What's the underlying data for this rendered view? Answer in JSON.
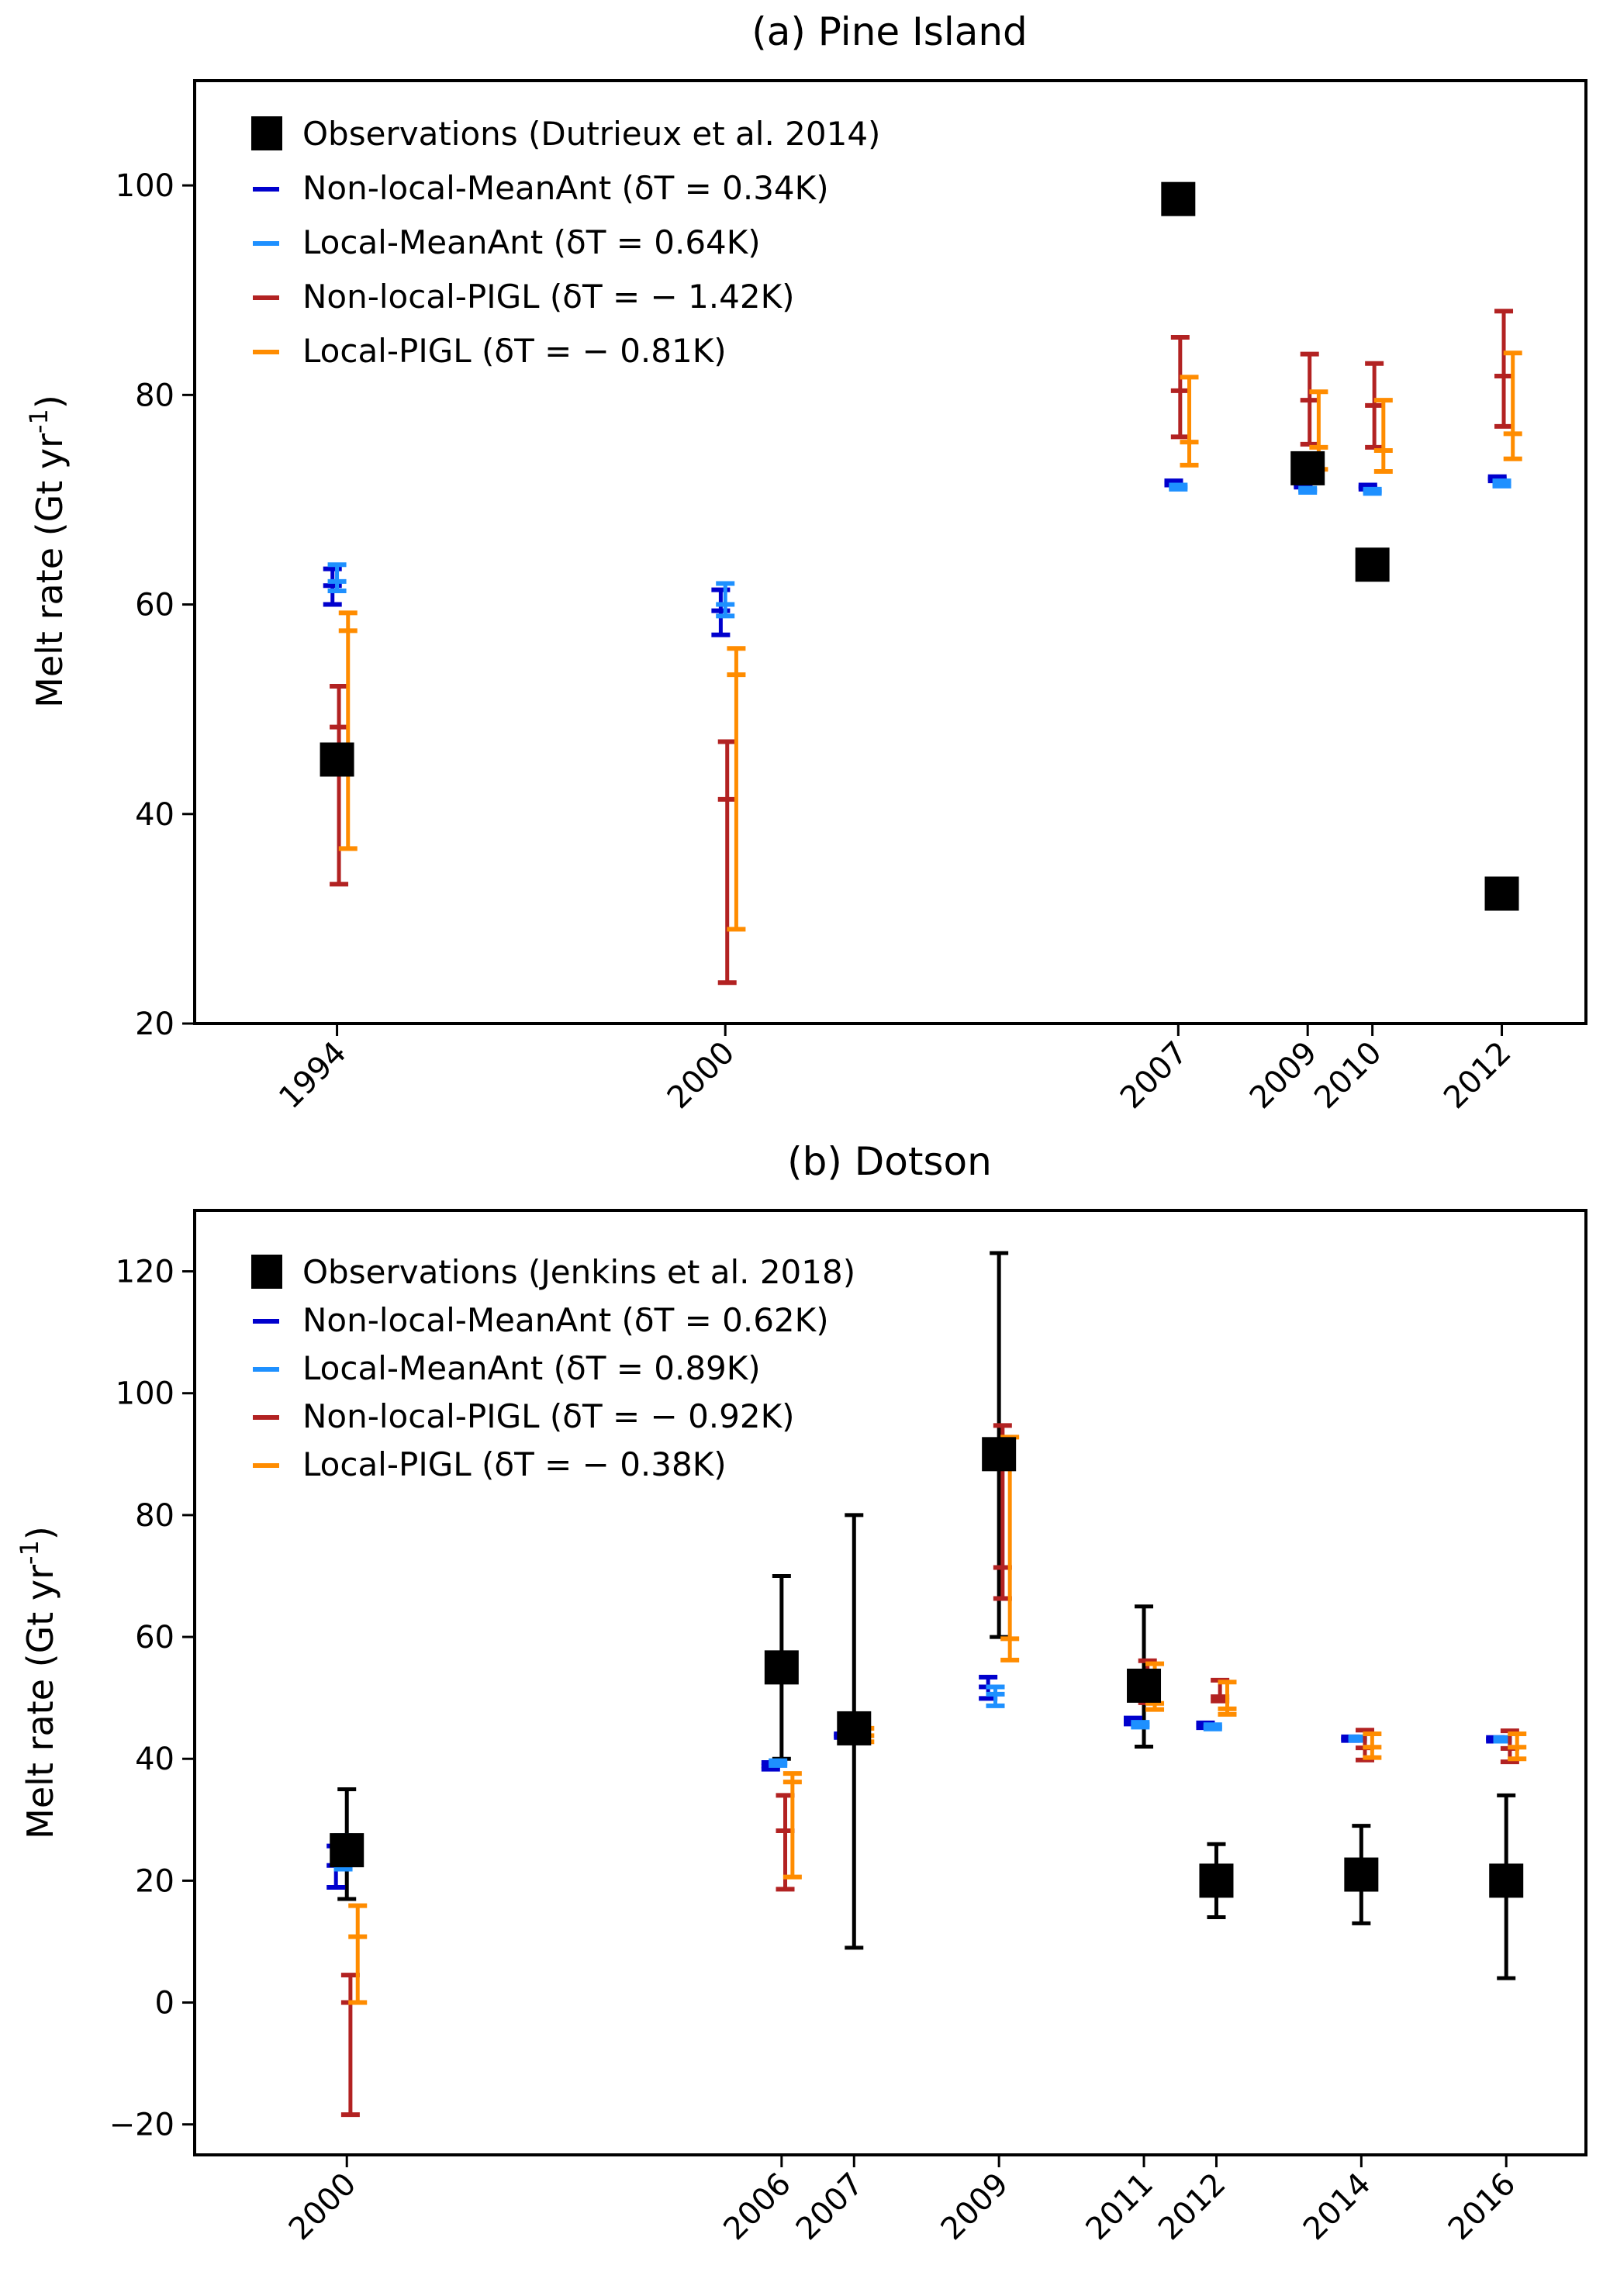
{
  "chart_data": [
    {
      "type": "scatter",
      "title": "(a) Pine Island",
      "xlabel": "",
      "ylabel": "Melt rate (Gt yr⁻¹)",
      "ylabel_base": "Melt rate (Gt yr",
      "ylabel_sup": "-1",
      "ylabel_close": ")",
      "xlim": [
        1991.8,
        2013.3
      ],
      "ylim": [
        20,
        110
      ],
      "yticks": [
        20,
        40,
        60,
        80,
        100
      ],
      "ytick_labels": [
        "20",
        "40",
        "60",
        "80",
        "100"
      ],
      "xticks": [
        1994,
        2000,
        2007,
        2009,
        2010,
        2012
      ],
      "xtick_labels": [
        "1994",
        "2000",
        "2007",
        "2009",
        "2010",
        "2012"
      ],
      "grid": false,
      "legend_position": "top-left",
      "legend": [
        {
          "label": "Observations (Dutrieux et al. 2014)",
          "marker": "square",
          "color": "#000000"
        },
        {
          "label": "Non-local-MeanAnt (δT = 0.34K)",
          "marker": "dash",
          "color": "#0000cd"
        },
        {
          "label": "Local-MeanAnt (δT = 0.64K)",
          "marker": "dash",
          "color": "#1e90ff"
        },
        {
          "label": "Non-local-PIGL (δT = − 1.42K)",
          "marker": "dash",
          "color": "#b22222"
        },
        {
          "label": "Local-PIGL (δT = − 0.81K)",
          "marker": "dash",
          "color": "#ff8c00"
        }
      ],
      "observations": {
        "name": "Observations (Dutrieux et al. 2014)",
        "color": "#000000",
        "points": [
          {
            "x": 1994,
            "y": 45.2
          },
          {
            "x": 2007,
            "y": 98.7
          },
          {
            "x": 2009,
            "y": 73.0
          },
          {
            "x": 2010,
            "y": 63.8
          },
          {
            "x": 2012,
            "y": 32.4
          }
        ]
      },
      "series": [
        {
          "name": "Non-local-MeanAnt",
          "delta_T": "0.34K",
          "color": "#0000cd",
          "offset_years": -0.07,
          "points": [
            {
              "x": 1994,
              "low": 60.0,
              "mid": 61.8,
              "high": 63.4
            },
            {
              "x": 2000,
              "low": 57.1,
              "mid": 59.4,
              "high": 61.4
            },
            {
              "x": 2007,
              "low": 71.4,
              "mid": 71.6,
              "high": 71.8
            },
            {
              "x": 2009,
              "low": 71.2,
              "mid": 71.4,
              "high": 71.6
            },
            {
              "x": 2010,
              "low": 71.0,
              "mid": 71.2,
              "high": 71.4
            },
            {
              "x": 2012,
              "low": 71.8,
              "mid": 72.0,
              "high": 72.2
            }
          ]
        },
        {
          "name": "Local-MeanAnt",
          "delta_T": "0.64K",
          "color": "#1e90ff",
          "offset_years": 0.0,
          "points": [
            {
              "x": 1994,
              "low": 61.3,
              "mid": 62.2,
              "high": 63.8
            },
            {
              "x": 2000,
              "low": 58.9,
              "mid": 60.0,
              "high": 62.0
            },
            {
              "x": 2007,
              "low": 71.0,
              "mid": 71.2,
              "high": 71.4
            },
            {
              "x": 2009,
              "low": 70.7,
              "mid": 70.9,
              "high": 71.1
            },
            {
              "x": 2010,
              "low": 70.6,
              "mid": 70.8,
              "high": 71.0
            },
            {
              "x": 2012,
              "low": 71.3,
              "mid": 71.5,
              "high": 71.8
            }
          ]
        },
        {
          "name": "Non-local-PIGL",
          "delta_T": "-1.42K",
          "color": "#b22222",
          "offset_years": 0.03,
          "points": [
            {
              "x": 1994,
              "low": 33.3,
              "mid": 48.3,
              "high": 52.2
            },
            {
              "x": 2000,
              "low": 23.9,
              "mid": 41.4,
              "high": 46.9
            },
            {
              "x": 2007,
              "low": 76.0,
              "mid": 80.4,
              "high": 85.5
            },
            {
              "x": 2009,
              "low": 75.3,
              "mid": 79.5,
              "high": 83.9
            },
            {
              "x": 2010,
              "low": 75.0,
              "mid": 79.0,
              "high": 83.0
            },
            {
              "x": 2012,
              "low": 77.0,
              "mid": 81.8,
              "high": 88.0
            }
          ]
        },
        {
          "name": "Local-PIGL",
          "delta_T": "-0.81K",
          "color": "#ff8c00",
          "offset_years": 0.17,
          "points": [
            {
              "x": 1994,
              "low": 36.7,
              "mid": 57.5,
              "high": 59.2
            },
            {
              "x": 2000,
              "low": 29.0,
              "mid": 53.3,
              "high": 55.8
            },
            {
              "x": 2007,
              "low": 73.3,
              "mid": 75.5,
              "high": 81.7
            },
            {
              "x": 2009,
              "low": 72.9,
              "mid": 75.0,
              "high": 80.3
            },
            {
              "x": 2010,
              "low": 72.7,
              "mid": 74.7,
              "high": 79.5
            },
            {
              "x": 2012,
              "low": 73.9,
              "mid": 76.3,
              "high": 84.0
            }
          ]
        }
      ]
    },
    {
      "type": "scatter",
      "title": "(b) Dotson",
      "xlabel": "",
      "ylabel": "Melt rate (Gt yr⁻¹)",
      "ylabel_base": "Melt rate (Gt yr",
      "ylabel_sup": "-1",
      "ylabel_close": ")",
      "xlim": [
        1997.9,
        2017.1
      ],
      "ylim": [
        -25,
        130
      ],
      "yticks": [
        -20,
        0,
        20,
        40,
        60,
        80,
        100,
        120
      ],
      "ytick_labels": [
        "−20",
        "0",
        "20",
        "40",
        "60",
        "80",
        "100",
        "120"
      ],
      "xticks": [
        2000,
        2006,
        2007,
        2009,
        2011,
        2012,
        2014,
        2016
      ],
      "xtick_labels": [
        "2000",
        "2006",
        "2007",
        "2009",
        "2011",
        "2012",
        "2014",
        "2016"
      ],
      "grid": false,
      "legend_position": "top-left",
      "legend": [
        {
          "label": "Observations (Jenkins et al. 2018)",
          "marker": "square",
          "color": "#000000"
        },
        {
          "label": "Non-local-MeanAnt (δT = 0.62K)",
          "marker": "dash",
          "color": "#0000cd"
        },
        {
          "label": "Local-MeanAnt (δT = 0.89K)",
          "marker": "dash",
          "color": "#1e90ff"
        },
        {
          "label": "Non-local-PIGL (δT = − 0.92K)",
          "marker": "dash",
          "color": "#b22222"
        },
        {
          "label": "Local-PIGL (δT = − 0.38K)",
          "marker": "dash",
          "color": "#ff8c00"
        }
      ],
      "observations": {
        "name": "Observations (Jenkins et al. 2018)",
        "color": "#000000",
        "points": [
          {
            "x": 2000,
            "y": 25.0,
            "low": 17.0,
            "high": 35.0
          },
          {
            "x": 2006,
            "y": 55.0,
            "low": 40.0,
            "high": 70.0
          },
          {
            "x": 2007,
            "y": 45.0,
            "low": 9.0,
            "high": 80.0
          },
          {
            "x": 2009,
            "y": 90.0,
            "low": 60.0,
            "high": 123.0
          },
          {
            "x": 2011,
            "y": 52.0,
            "low": 42.0,
            "high": 65.0
          },
          {
            "x": 2012,
            "y": 20.0,
            "low": 14.0,
            "high": 26.0
          },
          {
            "x": 2014,
            "y": 21.0,
            "low": 13.0,
            "high": 29.0
          },
          {
            "x": 2016,
            "y": 20.0,
            "low": 4.0,
            "high": 34.0
          }
        ]
      },
      "series": [
        {
          "name": "Non-local-MeanAnt",
          "delta_T": "0.62K",
          "color": "#0000cd",
          "offset_years": -0.15,
          "points": [
            {
              "x": 2000,
              "low": 18.9,
              "mid": 22.5,
              "high": 25.7
            },
            {
              "x": 2006,
              "low": 38.3,
              "mid": 38.8,
              "high": 39.4
            },
            {
              "x": 2007,
              "low": 43.5,
              "mid": 43.8,
              "high": 44.1
            },
            {
              "x": 2009,
              "low": 49.9,
              "mid": 51.8,
              "high": 53.4
            },
            {
              "x": 2011,
              "low": 45.7,
              "mid": 46.2,
              "high": 46.7
            },
            {
              "x": 2012,
              "low": 45.1,
              "mid": 45.5,
              "high": 45.9
            },
            {
              "x": 2014,
              "low": 43.0,
              "mid": 43.3,
              "high": 43.6
            },
            {
              "x": 2016,
              "low": 42.9,
              "mid": 43.2,
              "high": 43.5
            }
          ]
        },
        {
          "name": "Local-MeanAnt",
          "delta_T": "0.89K",
          "color": "#1e90ff",
          "offset_years": -0.05,
          "points": [
            {
              "x": 2000,
              "low": 21.9,
              "mid": 24.7,
              "high": 27.4
            },
            {
              "x": 2006,
              "low": 38.9,
              "mid": 39.3,
              "high": 39.7
            },
            {
              "x": 2007,
              "low": 43.5,
              "mid": 43.8,
              "high": 44.1
            },
            {
              "x": 2009,
              "low": 48.7,
              "mid": 50.6,
              "high": 51.8
            },
            {
              "x": 2011,
              "low": 45.2,
              "mid": 45.6,
              "high": 46.0
            },
            {
              "x": 2012,
              "low": 44.9,
              "mid": 45.2,
              "high": 45.6
            },
            {
              "x": 2014,
              "low": 43.0,
              "mid": 43.3,
              "high": 43.6
            },
            {
              "x": 2016,
              "low": 42.9,
              "mid": 43.2,
              "high": 43.5
            }
          ]
        },
        {
          "name": "Non-local-PIGL",
          "delta_T": "-0.92K",
          "color": "#b22222",
          "offset_years": 0.05,
          "points": [
            {
              "x": 2000,
              "low": -18.4,
              "mid": 0.0,
              "high": 4.5
            },
            {
              "x": 2006,
              "low": 18.6,
              "mid": 28.2,
              "high": 34.0
            },
            {
              "x": 2007,
              "low": 42.8,
              "mid": 43.8,
              "high": 45.5
            },
            {
              "x": 2009,
              "low": 66.3,
              "mid": 71.4,
              "high": 94.7
            },
            {
              "x": 2011,
              "low": 49.2,
              "mid": 51.2,
              "high": 56.1
            },
            {
              "x": 2012,
              "low": 49.5,
              "mid": 50.2,
              "high": 52.9
            },
            {
              "x": 2014,
              "low": 39.8,
              "mid": 41.8,
              "high": 44.7
            },
            {
              "x": 2016,
              "low": 39.5,
              "mid": 41.7,
              "high": 44.6
            }
          ]
        },
        {
          "name": "Local-PIGL",
          "delta_T": "-0.38K",
          "color": "#ff8c00",
          "offset_years": 0.15,
          "points": [
            {
              "x": 2000,
              "low": 0.0,
              "mid": 10.8,
              "high": 15.9
            },
            {
              "x": 2006,
              "low": 20.6,
              "mid": 36.2,
              "high": 37.6
            },
            {
              "x": 2007,
              "low": 42.8,
              "mid": 43.8,
              "high": 45.0
            },
            {
              "x": 2009,
              "low": 56.2,
              "mid": 59.7,
              "high": 92.8
            },
            {
              "x": 2011,
              "low": 48.1,
              "mid": 49.1,
              "high": 55.6
            },
            {
              "x": 2012,
              "low": 47.3,
              "mid": 48.2,
              "high": 52.6
            },
            {
              "x": 2014,
              "low": 40.2,
              "mid": 41.9,
              "high": 44.1
            },
            {
              "x": 2016,
              "low": 40.0,
              "mid": 41.9,
              "high": 44.1
            }
          ]
        }
      ]
    }
  ]
}
